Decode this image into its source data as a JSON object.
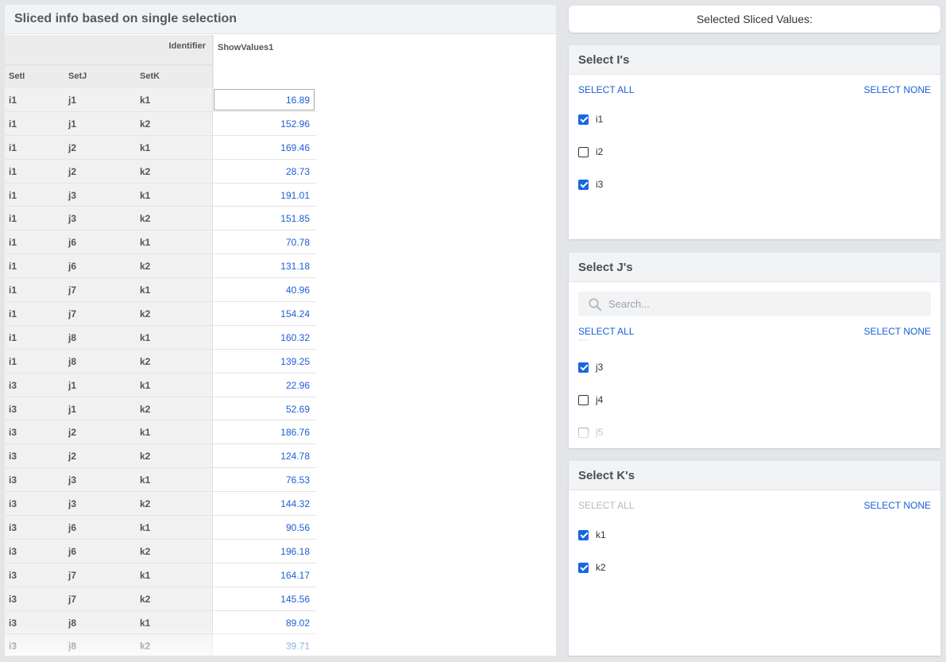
{
  "left_panel": {
    "title": "Sliced info based on single selection",
    "identifier_label": "Identifier",
    "value_column": "ShowValues1",
    "index_columns": [
      "SetI",
      "SetJ",
      "SetK"
    ],
    "rows": [
      {
        "i": "i1",
        "j": "j1",
        "k": "k1",
        "value": "16.89"
      },
      {
        "i": "i1",
        "j": "j1",
        "k": "k2",
        "value": "152.96"
      },
      {
        "i": "i1",
        "j": "j2",
        "k": "k1",
        "value": "169.46"
      },
      {
        "i": "i1",
        "j": "j2",
        "k": "k2",
        "value": "28.73"
      },
      {
        "i": "i1",
        "j": "j3",
        "k": "k1",
        "value": "191.01"
      },
      {
        "i": "i1",
        "j": "j3",
        "k": "k2",
        "value": "151.85"
      },
      {
        "i": "i1",
        "j": "j6",
        "k": "k1",
        "value": "70.78"
      },
      {
        "i": "i1",
        "j": "j6",
        "k": "k2",
        "value": "131.18"
      },
      {
        "i": "i1",
        "j": "j7",
        "k": "k1",
        "value": "40.96"
      },
      {
        "i": "i1",
        "j": "j7",
        "k": "k2",
        "value": "154.24"
      },
      {
        "i": "i1",
        "j": "j8",
        "k": "k1",
        "value": "160.32"
      },
      {
        "i": "i1",
        "j": "j8",
        "k": "k2",
        "value": "139.25"
      },
      {
        "i": "i3",
        "j": "j1",
        "k": "k1",
        "value": "22.96"
      },
      {
        "i": "i3",
        "j": "j1",
        "k": "k2",
        "value": "52.69"
      },
      {
        "i": "i3",
        "j": "j2",
        "k": "k1",
        "value": "186.76"
      },
      {
        "i": "i3",
        "j": "j2",
        "k": "k2",
        "value": "124.78"
      },
      {
        "i": "i3",
        "j": "j3",
        "k": "k1",
        "value": "76.53"
      },
      {
        "i": "i3",
        "j": "j3",
        "k": "k2",
        "value": "144.32"
      },
      {
        "i": "i3",
        "j": "j6",
        "k": "k1",
        "value": "90.56"
      },
      {
        "i": "i3",
        "j": "j6",
        "k": "k2",
        "value": "196.18"
      },
      {
        "i": "i3",
        "j": "j7",
        "k": "k1",
        "value": "164.17"
      },
      {
        "i": "i3",
        "j": "j7",
        "k": "k2",
        "value": "145.56"
      },
      {
        "i": "i3",
        "j": "j8",
        "k": "k1",
        "value": "89.02"
      },
      {
        "i": "i3",
        "j": "j8",
        "k": "k2",
        "value": "39.71"
      }
    ]
  },
  "selected_bar": {
    "label": "Selected Sliced Values:"
  },
  "panel_i": {
    "title": "Select I's",
    "select_all": "SELECT ALL",
    "select_none": "SELECT NONE",
    "options": [
      {
        "label": "i1",
        "checked": true
      },
      {
        "label": "i2",
        "checked": false
      },
      {
        "label": "i3",
        "checked": true
      }
    ]
  },
  "panel_j": {
    "title": "Select J's",
    "search_placeholder": "Search...",
    "select_all": "SELECT ALL",
    "select_none": "SELECT NONE",
    "options": [
      {
        "label": "j3",
        "checked": true
      },
      {
        "label": "j4",
        "checked": false
      },
      {
        "label": "j5",
        "checked": false
      }
    ]
  },
  "panel_k": {
    "title": "Select K's",
    "select_all": "SELECT ALL",
    "select_none": "SELECT NONE",
    "options": [
      {
        "label": "k1",
        "checked": true
      },
      {
        "label": "k2",
        "checked": true
      }
    ]
  },
  "colors": {
    "accent": "#1a66e0",
    "value_text": "#1a5fd6",
    "header_bg": "#f2f3f5",
    "page_bg": "#e4e5e9"
  },
  "icons": {
    "search": "search-icon",
    "checkbox": "checkbox-icon"
  }
}
